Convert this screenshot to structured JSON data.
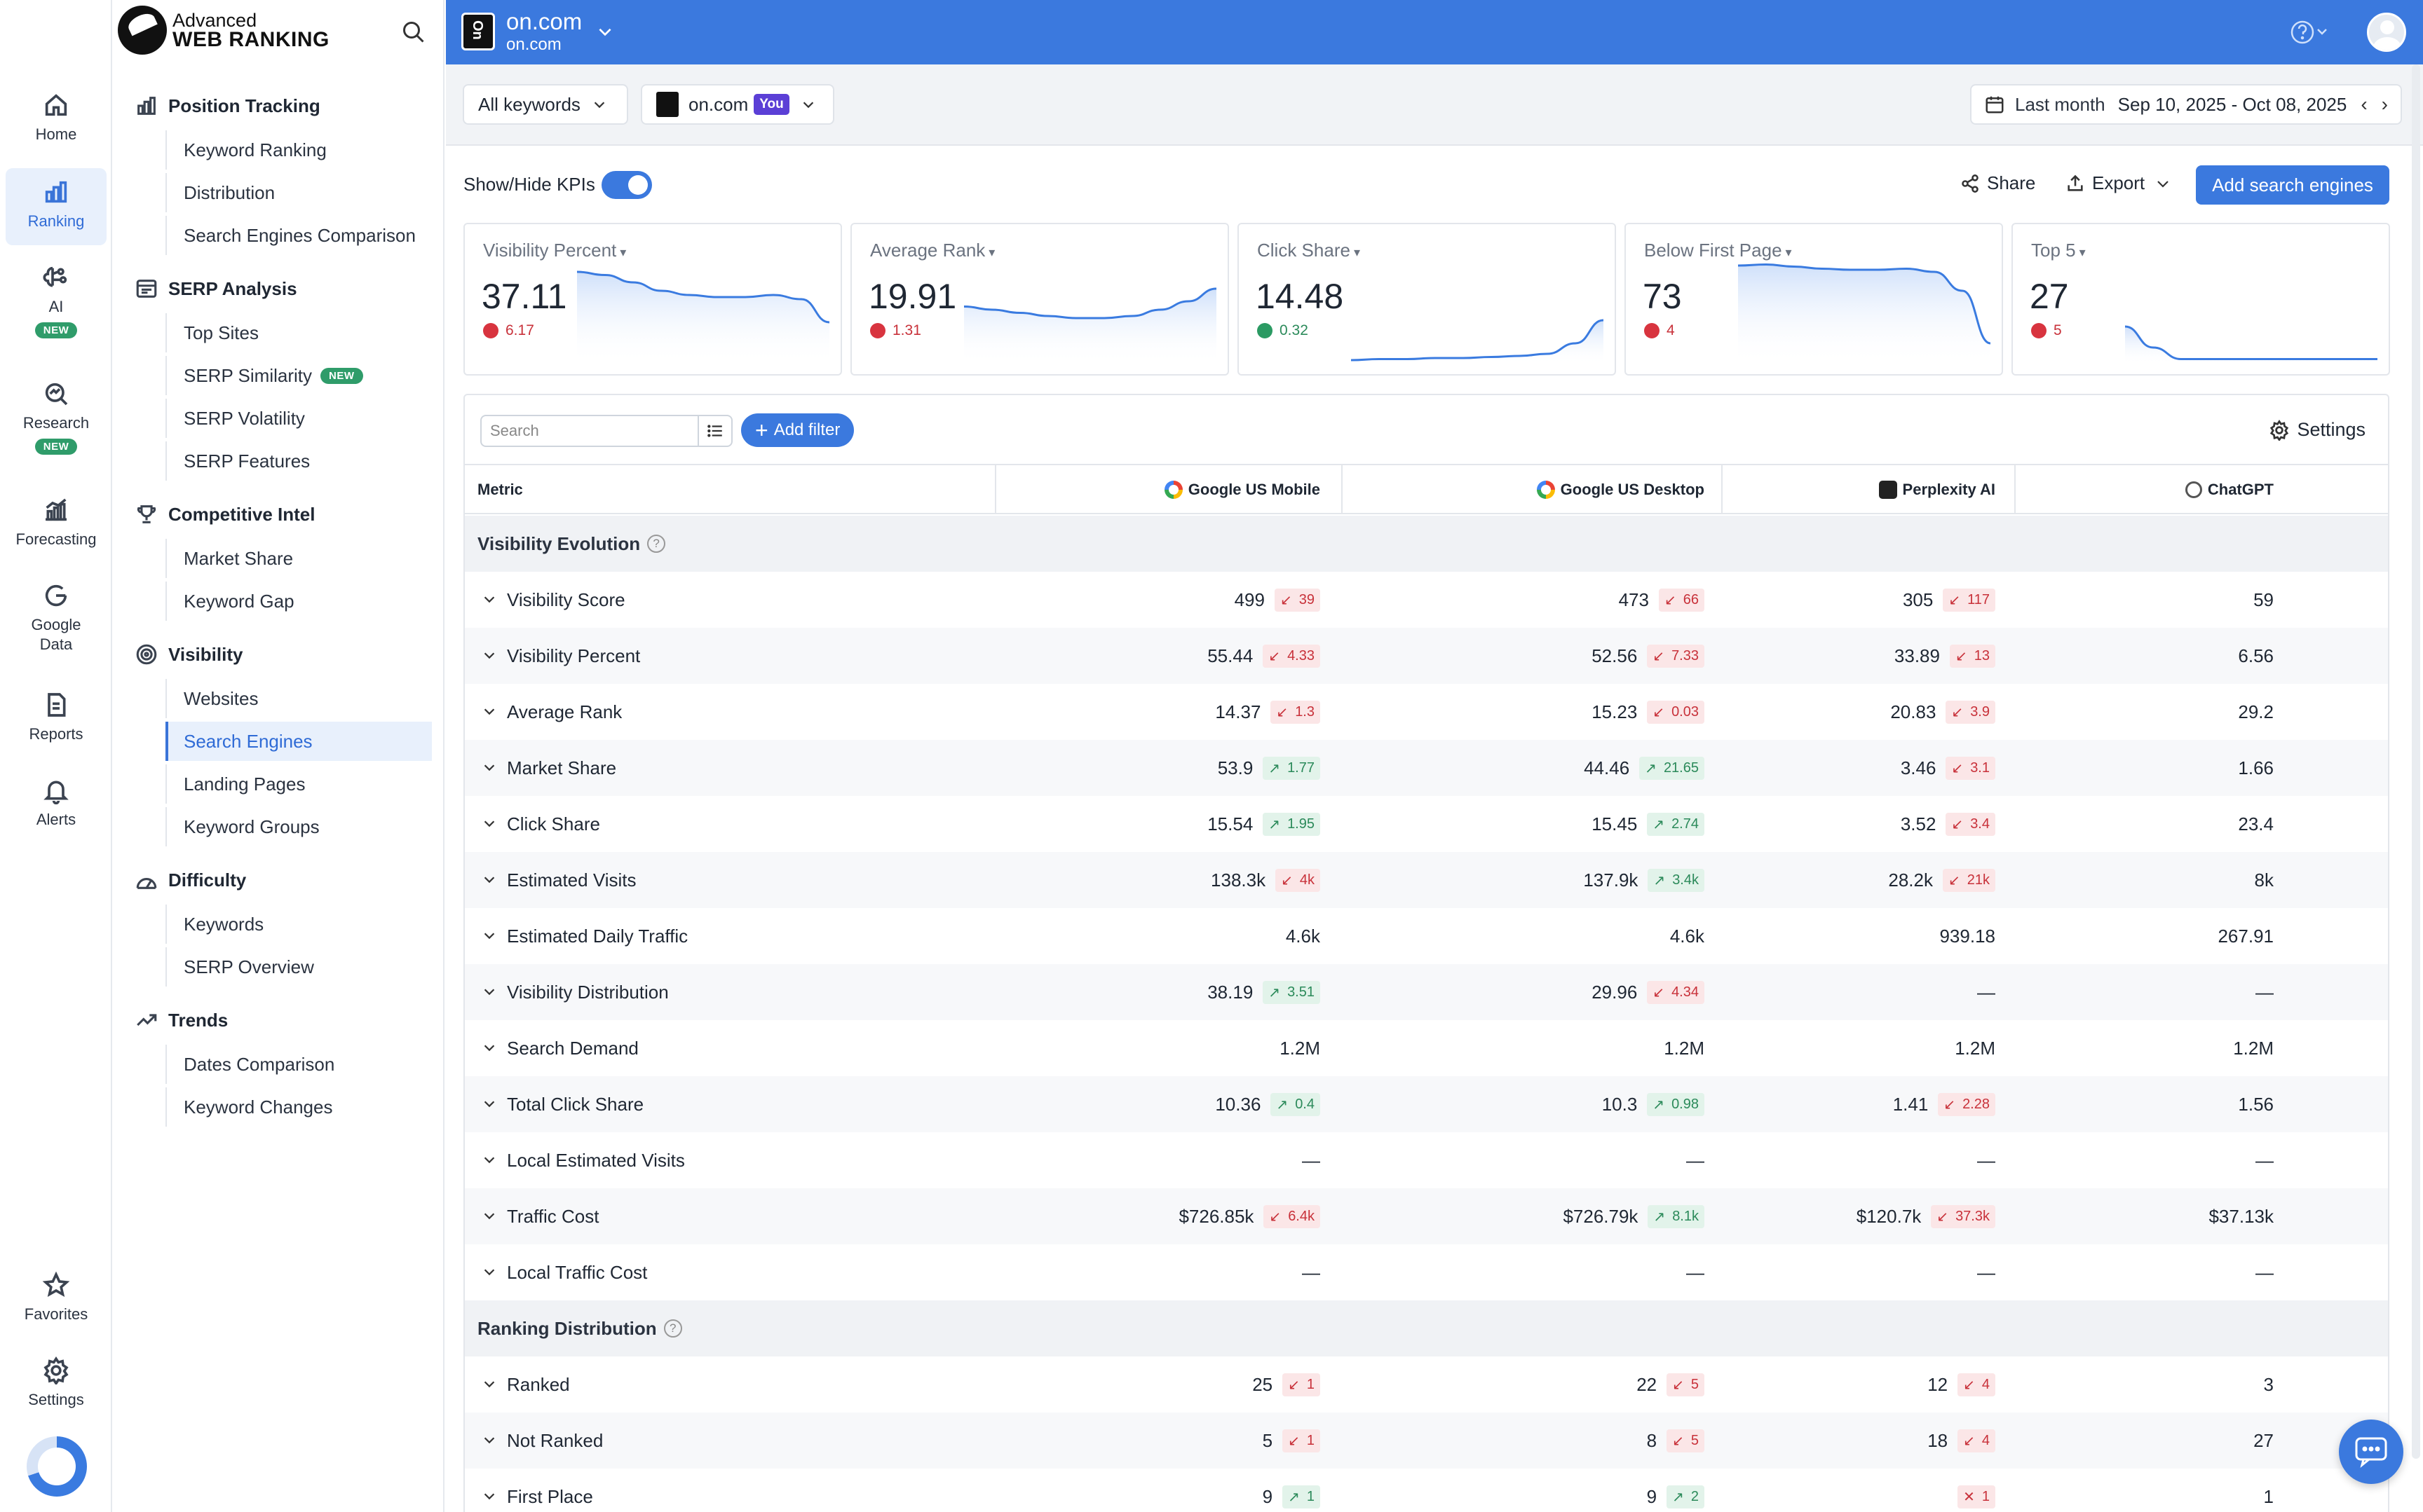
{
  "rail": {
    "items": [
      {
        "label": "Home",
        "icon": "home-icon"
      },
      {
        "label": "Ranking",
        "icon": "bar-chart-icon",
        "active": true
      },
      {
        "label": "AI",
        "icon": "ai-brain-icon",
        "badge": "NEW"
      },
      {
        "label": "Research",
        "icon": "research-search-icon",
        "badge": "NEW"
      },
      {
        "label": "Forecasting",
        "icon": "forecast-chart-icon"
      },
      {
        "label": "Google Data",
        "icon": "google-g-icon"
      },
      {
        "label": "Reports",
        "icon": "report-doc-icon"
      },
      {
        "label": "Alerts",
        "icon": "bell-icon"
      },
      {
        "label": "Favorites",
        "icon": "star-icon"
      },
      {
        "label": "Settings",
        "icon": "gear-icon"
      }
    ]
  },
  "brand": {
    "line1": "Advanced",
    "line2": "WEB RANKING"
  },
  "subnav": {
    "sections": [
      {
        "title": "Position Tracking",
        "icon": "bar-chart-icon",
        "items": [
          "Keyword Ranking",
          "Distribution",
          "Search Engines Comparison"
        ]
      },
      {
        "title": "SERP Analysis",
        "icon": "serp-icon",
        "items": [
          "Top Sites",
          "SERP Similarity",
          "SERP Volatility",
          "SERP Features"
        ]
      },
      {
        "title": "Competitive Intel",
        "icon": "trophy-icon",
        "items": [
          "Market Share",
          "Keyword Gap"
        ]
      },
      {
        "title": "Visibility",
        "icon": "visibility-gauge-icon",
        "items": [
          "Websites",
          "Search Engines",
          "Landing Pages",
          "Keyword Groups"
        ]
      },
      {
        "title": "Difficulty",
        "icon": "difficulty-icon",
        "items": [
          "Keywords",
          "SERP Overview"
        ]
      },
      {
        "title": "Trends",
        "icon": "trend-up-icon",
        "items": [
          "Dates Comparison",
          "Keyword Changes"
        ]
      }
    ],
    "new_badge": "NEW",
    "active_item": "Search Engines"
  },
  "topbar": {
    "title": "on.com",
    "subtitle": "on.com"
  },
  "filters": {
    "keywords": "All keywords",
    "site": "on.com",
    "you_badge": "You",
    "date_preset": "Last month",
    "date_range": "Sep 10, 2025 - Oct 08, 2025"
  },
  "toolbar": {
    "kpi_toggle_label": "Show/Hide KPIs",
    "kpi_toggle_on": true,
    "share": "Share",
    "export": "Export",
    "add_engines": "Add search engines"
  },
  "kpis": [
    {
      "title": "Visibility Percent",
      "value": "37.11",
      "delta": "6.17",
      "dir": "down",
      "trend": [
        0.88,
        0.85,
        0.78,
        0.7,
        0.66,
        0.64,
        0.64,
        0.66,
        0.62,
        0.4
      ]
    },
    {
      "title": "Average Rank",
      "value": "19.91",
      "delta": "1.31",
      "dir": "down",
      "trend": [
        0.55,
        0.52,
        0.49,
        0.46,
        0.44,
        0.44,
        0.46,
        0.52,
        0.6,
        0.72
      ]
    },
    {
      "title": "Click Share",
      "value": "14.48",
      "delta": "0.32",
      "dir": "up",
      "trend": [
        0.04,
        0.05,
        0.05,
        0.06,
        0.06,
        0.07,
        0.08,
        0.1,
        0.2,
        0.42
      ]
    },
    {
      "title": "Below First Page",
      "value": "73",
      "delta": "4",
      "dir": "down",
      "trend": [
        0.94,
        0.95,
        0.93,
        0.91,
        0.9,
        0.9,
        0.91,
        0.88,
        0.7,
        0.2
      ]
    },
    {
      "title": "Top 5",
      "value": "27",
      "delta": "5",
      "dir": "down",
      "trend": [
        0.36,
        0.16,
        0.05,
        0.05,
        0.05,
        0.05,
        0.05,
        0.05,
        0.05,
        0.05
      ]
    }
  ],
  "table": {
    "search_placeholder": "Search",
    "add_filter": "Add filter",
    "settings": "Settings",
    "headers": [
      "Metric",
      "Google US Mobile",
      "Google US Desktop",
      "Perplexity AI",
      "ChatGPT"
    ],
    "groups": [
      {
        "title": "Visibility Evolution",
        "rows": [
          {
            "metric": "Visibility Score",
            "cells": [
              {
                "v": "499",
                "d": "39",
                "dir": "down"
              },
              {
                "v": "473",
                "d": "66",
                "dir": "down"
              },
              {
                "v": "305",
                "d": "117",
                "dir": "down"
              },
              {
                "v": "59"
              }
            ]
          },
          {
            "metric": "Visibility Percent",
            "cells": [
              {
                "v": "55.44",
                "d": "4.33",
                "dir": "down"
              },
              {
                "v": "52.56",
                "d": "7.33",
                "dir": "down"
              },
              {
                "v": "33.89",
                "d": "13",
                "dir": "down"
              },
              {
                "v": "6.56"
              }
            ]
          },
          {
            "metric": "Average Rank",
            "cells": [
              {
                "v": "14.37",
                "d": "1.3",
                "dir": "down"
              },
              {
                "v": "15.23",
                "d": "0.03",
                "dir": "down"
              },
              {
                "v": "20.83",
                "d": "3.9",
                "dir": "down"
              },
              {
                "v": "29.2"
              }
            ]
          },
          {
            "metric": "Market Share",
            "cells": [
              {
                "v": "53.9",
                "d": "1.77",
                "dir": "up"
              },
              {
                "v": "44.46",
                "d": "21.65",
                "dir": "up"
              },
              {
                "v": "3.46",
                "d": "3.1",
                "dir": "down"
              },
              {
                "v": "1.66"
              }
            ]
          },
          {
            "metric": "Click Share",
            "cells": [
              {
                "v": "15.54",
                "d": "1.95",
                "dir": "up"
              },
              {
                "v": "15.45",
                "d": "2.74",
                "dir": "up"
              },
              {
                "v": "3.52",
                "d": "3.4",
                "dir": "down"
              },
              {
                "v": "23.4"
              }
            ]
          },
          {
            "metric": "Estimated Visits",
            "cells": [
              {
                "v": "138.3k",
                "d": "4k",
                "dir": "down"
              },
              {
                "v": "137.9k",
                "d": "3.4k",
                "dir": "up"
              },
              {
                "v": "28.2k",
                "d": "21k",
                "dir": "down"
              },
              {
                "v": "8k"
              }
            ]
          },
          {
            "metric": "Estimated Daily Traffic",
            "cells": [
              {
                "v": "4.6k"
              },
              {
                "v": "4.6k"
              },
              {
                "v": "939.18"
              },
              {
                "v": "267.91"
              }
            ]
          },
          {
            "metric": "Visibility Distribution",
            "cells": [
              {
                "v": "38.19",
                "d": "3.51",
                "dir": "up"
              },
              {
                "v": "29.96",
                "d": "4.34",
                "dir": "down"
              },
              {
                "v": "—"
              },
              {
                "v": "—"
              }
            ]
          },
          {
            "metric": "Search Demand",
            "cells": [
              {
                "v": "1.2M"
              },
              {
                "v": "1.2M"
              },
              {
                "v": "1.2M"
              },
              {
                "v": "1.2M"
              }
            ]
          },
          {
            "metric": "Total Click Share",
            "cells": [
              {
                "v": "10.36",
                "d": "0.4",
                "dir": "up"
              },
              {
                "v": "10.3",
                "d": "0.98",
                "dir": "up"
              },
              {
                "v": "1.41",
                "d": "2.28",
                "dir": "down"
              },
              {
                "v": "1.56"
              }
            ]
          },
          {
            "metric": "Local Estimated Visits",
            "cells": [
              {
                "v": "—"
              },
              {
                "v": "—"
              },
              {
                "v": "—"
              },
              {
                "v": "—"
              }
            ]
          },
          {
            "metric": "Traffic Cost",
            "cells": [
              {
                "v": "$726.85k",
                "d": "6.4k",
                "dir": "down"
              },
              {
                "v": "$726.79k",
                "d": "8.1k",
                "dir": "up"
              },
              {
                "v": "$120.7k",
                "d": "37.3k",
                "dir": "down"
              },
              {
                "v": "$37.13k"
              }
            ]
          },
          {
            "metric": "Local Traffic Cost",
            "cells": [
              {
                "v": "—"
              },
              {
                "v": "—"
              },
              {
                "v": "—"
              },
              {
                "v": "—"
              }
            ]
          }
        ]
      },
      {
        "title": "Ranking Distribution",
        "rows": [
          {
            "metric": "Ranked",
            "cells": [
              {
                "v": "25",
                "d": "1",
                "dir": "down"
              },
              {
                "v": "22",
                "d": "5",
                "dir": "down"
              },
              {
                "v": "12",
                "d": "4",
                "dir": "down"
              },
              {
                "v": "3"
              }
            ]
          },
          {
            "metric": "Not Ranked",
            "cells": [
              {
                "v": "5",
                "d": "1",
                "dir": "down"
              },
              {
                "v": "8",
                "d": "5",
                "dir": "down"
              },
              {
                "v": "18",
                "d": "4",
                "dir": "down"
              },
              {
                "v": "27"
              }
            ]
          },
          {
            "metric": "First Place",
            "cells": [
              {
                "v": "9",
                "d": "1",
                "dir": "up"
              },
              {
                "v": "9",
                "d": "2",
                "dir": "up"
              },
              {
                "v": "",
                "d": "1",
                "dir": "down",
                "cross": true
              },
              {
                "v": "1"
              }
            ]
          }
        ]
      }
    ]
  }
}
